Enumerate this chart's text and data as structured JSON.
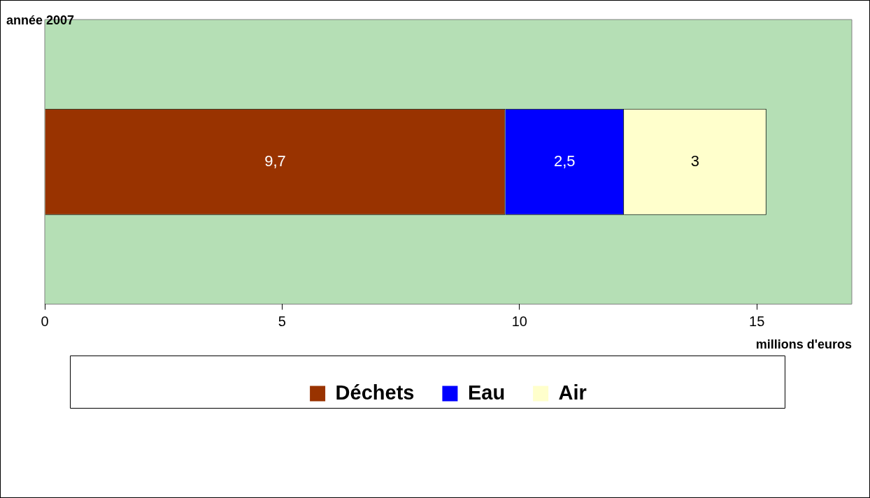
{
  "chart_data": {
    "type": "bar",
    "orientation": "horizontal",
    "stacked": true,
    "title": "année 2007",
    "xlabel": "millions d'euros",
    "categories": [
      null
    ],
    "series": [
      {
        "name": "Déchets",
        "color": "#993300",
        "values": [
          9.7
        ],
        "value_labels": [
          "9,7"
        ]
      },
      {
        "name": "Eau",
        "color": "#0000ff",
        "values": [
          2.5
        ],
        "value_labels": [
          "2,5"
        ]
      },
      {
        "name": "Air",
        "color": "#ffffcc",
        "values": [
          3
        ],
        "value_labels": [
          "3"
        ]
      }
    ],
    "xlim": [
      0,
      17
    ],
    "xticks": [
      0,
      5,
      10,
      15
    ],
    "legend": "bottom"
  }
}
